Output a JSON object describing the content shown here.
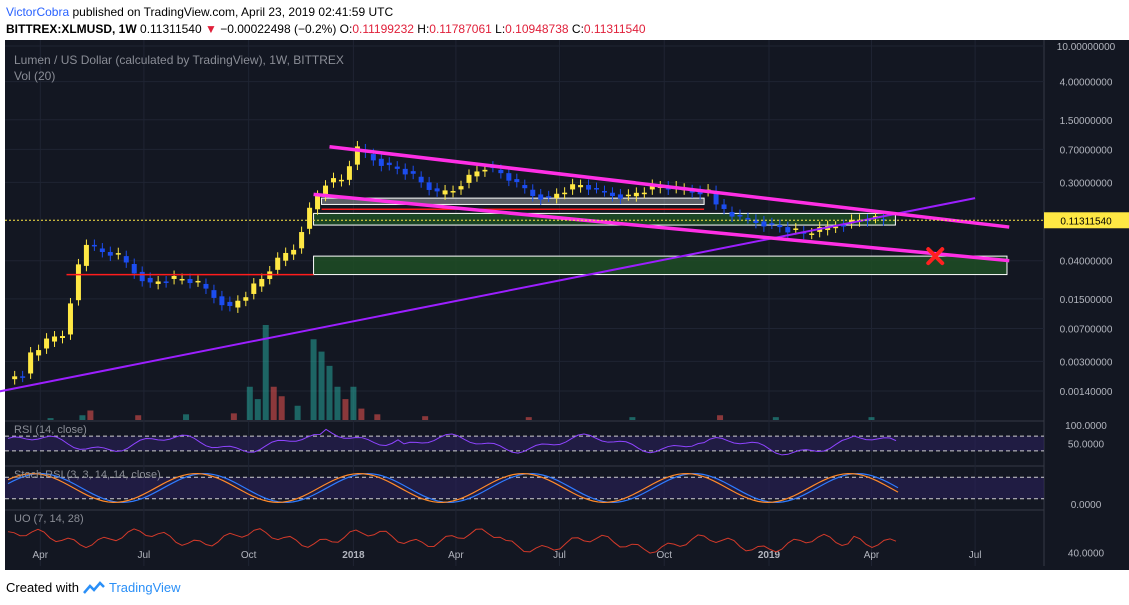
{
  "header": {
    "author": "VictorCobra",
    "published": "published on TradingView.com, April 23, 2019 02:41:59 UTC",
    "symbol": "BITTREX:XLMUSD, 1W",
    "last": "0.11311540",
    "change": "−0.00022498 (−0.2%)",
    "o_label": "O:",
    "o": "0.11199232",
    "h_label": "H:",
    "h": "0.11787061",
    "l_label": "L:",
    "l": "0.10948738",
    "c_label": "C:",
    "c": "0.11311540"
  },
  "chart_data": [
    {
      "type": "candlestick",
      "title": "Lumen / US Dollar (calculated by TradingView), 1W, BITTREX",
      "subtitle": "Vol (20)",
      "y_scale": "log",
      "ylim": [
        0.0007,
        10
      ],
      "y_ticks": [
        "10.00000000",
        "4.00000000",
        "1.50000000",
        "0.70000000",
        "0.30000000",
        "0.11311540",
        "0.04000000",
        "0.01500000",
        "0.00700000",
        "0.00300000",
        "0.00140000"
      ],
      "x_ticks": [
        "Apr",
        "Jul",
        "Oct",
        "2018",
        "Apr",
        "Jul",
        "Oct",
        "2019",
        "Apr",
        "Jul"
      ],
      "last_price": 0.1131154,
      "price_path": [
        [
          "2017-03-06",
          0.0019
        ],
        [
          "2017-03-20",
          0.0022
        ],
        [
          "2017-03-27",
          0.0035
        ],
        [
          "2017-04-10",
          0.005
        ],
        [
          "2017-04-24",
          0.006
        ],
        [
          "2017-05-08",
          0.035
        ],
        [
          "2017-05-15",
          0.06
        ],
        [
          "2017-05-29",
          0.05
        ],
        [
          "2017-06-12",
          0.045
        ],
        [
          "2017-06-26",
          0.03
        ],
        [
          "2017-07-10",
          0.022
        ],
        [
          "2017-07-24",
          0.025
        ],
        [
          "2017-08-07",
          0.025
        ],
        [
          "2017-08-21",
          0.022
        ],
        [
          "2017-09-04",
          0.016
        ],
        [
          "2017-09-18",
          0.012
        ],
        [
          "2017-10-02",
          0.017
        ],
        [
          "2017-10-16",
          0.025
        ],
        [
          "2017-10-30",
          0.04
        ],
        [
          "2017-11-13",
          0.055
        ],
        [
          "2017-11-27",
          0.15
        ],
        [
          "2017-12-11",
          0.3
        ],
        [
          "2017-12-25",
          0.32
        ],
        [
          "2018-01-08",
          0.7
        ],
        [
          "2018-01-22",
          0.55
        ],
        [
          "2018-02-05",
          0.45
        ],
        [
          "2018-02-19",
          0.4
        ],
        [
          "2018-03-05",
          0.3
        ],
        [
          "2018-03-19",
          0.22
        ],
        [
          "2018-04-02",
          0.25
        ],
        [
          "2018-04-16",
          0.35
        ],
        [
          "2018-04-30",
          0.45
        ],
        [
          "2018-05-14",
          0.38
        ],
        [
          "2018-05-28",
          0.28
        ],
        [
          "2018-06-11",
          0.22
        ],
        [
          "2018-06-25",
          0.2
        ],
        [
          "2018-07-09",
          0.25
        ],
        [
          "2018-07-23",
          0.28
        ],
        [
          "2018-08-06",
          0.24
        ],
        [
          "2018-08-20",
          0.22
        ],
        [
          "2018-09-03",
          0.21
        ],
        [
          "2018-09-17",
          0.25
        ],
        [
          "2018-10-01",
          0.27
        ],
        [
          "2018-10-15",
          0.25
        ],
        [
          "2018-10-29",
          0.24
        ],
        [
          "2018-11-12",
          0.24
        ],
        [
          "2018-11-19",
          0.17
        ],
        [
          "2018-11-26",
          0.14
        ],
        [
          "2018-12-10",
          0.12
        ],
        [
          "2018-12-24",
          0.11
        ],
        [
          "2019-01-07",
          0.1
        ],
        [
          "2019-01-21",
          0.09
        ],
        [
          "2019-02-04",
          0.08
        ],
        [
          "2019-02-18",
          0.088
        ],
        [
          "2019-03-04",
          0.1
        ],
        [
          "2019-03-18",
          0.11
        ],
        [
          "2019-04-01",
          0.12
        ],
        [
          "2019-04-15",
          0.113
        ]
      ],
      "volume_bars": [
        [
          "2017-04-10",
          0.02,
          "up"
        ],
        [
          "2017-05-08",
          0.05,
          "up"
        ],
        [
          "2017-05-15",
          0.1,
          "down"
        ],
        [
          "2017-06-26",
          0.05,
          "down"
        ],
        [
          "2017-08-07",
          0.06,
          "up"
        ],
        [
          "2017-09-18",
          0.07,
          "down"
        ],
        [
          "2017-10-02",
          0.35,
          "up"
        ],
        [
          "2017-10-09",
          0.22,
          "up"
        ],
        [
          "2017-10-16",
          1.0,
          "up"
        ],
        [
          "2017-10-23",
          0.35,
          "down"
        ],
        [
          "2017-10-30",
          0.25,
          "down"
        ],
        [
          "2017-11-13",
          0.15,
          "up"
        ],
        [
          "2017-11-27",
          0.85,
          "up"
        ],
        [
          "2017-12-04",
          0.72,
          "up"
        ],
        [
          "2017-12-11",
          0.57,
          "up"
        ],
        [
          "2017-12-18",
          0.35,
          "up"
        ],
        [
          "2017-12-25",
          0.22,
          "down"
        ],
        [
          "2018-01-01",
          0.35,
          "up"
        ],
        [
          "2018-01-08",
          0.12,
          "down"
        ],
        [
          "2018-01-22",
          0.06,
          "down"
        ],
        [
          "2018-03-05",
          0.04,
          "down"
        ],
        [
          "2018-06-04",
          0.03,
          "down"
        ],
        [
          "2018-09-03",
          0.03,
          "up"
        ],
        [
          "2018-11-19",
          0.05,
          "down"
        ],
        [
          "2019-01-07",
          0.03,
          "up"
        ],
        [
          "2019-04-01",
          0.03,
          "up"
        ]
      ],
      "annotations": {
        "channel_upper": [
          [
            "2017-12-11",
            0.75
          ],
          [
            "2019-07-31",
            0.095
          ]
        ],
        "channel_lower": [
          [
            "2017-11-27",
            0.22
          ],
          [
            "2019-07-31",
            0.04
          ]
        ],
        "rising_trendline": [
          [
            "2017-02-13",
            0.0013
          ],
          [
            "2019-07-01",
            0.2
          ]
        ],
        "support_line_2017": [
          [
            "2017-04-24",
            0.028
          ],
          [
            "2017-11-27",
            0.028
          ]
        ],
        "support_line_2018": [
          [
            "2017-11-27",
            0.15
          ],
          [
            "2019-07-31",
            0.028
          ]
        ],
        "red_resistance": [
          [
            "2017-12-04",
            0.15
          ],
          [
            "2018-11-05",
            0.15
          ]
        ],
        "boxes": [
          {
            "from": [
              "2017-12-04",
              0.2
            ],
            "to": [
              "2018-11-05",
              0.17
            ],
            "fill": "#e8e8e8"
          },
          {
            "from": [
              "2017-11-27",
              0.135
            ],
            "to": [
              "2019-04-22",
              0.1
            ],
            "fill": "#1e4d24"
          },
          {
            "from": [
              "2017-11-27",
              0.045
            ],
            "to": [
              "2019-07-29",
              0.028
            ],
            "fill": "#1e4d24"
          }
        ],
        "target_marker": [
          "2019-05-27",
          0.045
        ]
      },
      "colors": {
        "background": "#131722",
        "up": "#ffe844",
        "down": "#1c4df0",
        "channel": "#ff2fe5",
        "trend": "#9c1fff",
        "red": "#ff1c1c",
        "box_border": "#ffffff",
        "target_marker": "#ff2020",
        "price_label": "#ffe844"
      }
    },
    {
      "type": "line",
      "title": "RSI (14, close)",
      "y_ticks": [
        "100.0000",
        "50.0000"
      ],
      "bands": [
        70,
        30
      ],
      "last_value": 50,
      "colors": {
        "line": "#8e44ff",
        "band_fill": "#2a1f5a"
      }
    },
    {
      "type": "line",
      "title": "Stoch RSI (3, 3, 14, 14, close)",
      "y_ticks": [
        "0.0000"
      ],
      "series": [
        {
          "color": "#2f7bff"
        },
        {
          "color": "#ff8a2a"
        }
      ],
      "colors": {
        "band_fill": "#2a1f5a"
      }
    },
    {
      "type": "line",
      "title": "UO (7, 14, 28)",
      "y_ticks": [
        "40.0000"
      ],
      "colors": {
        "line": "#d33a2a"
      }
    }
  ],
  "footer": {
    "created_with": "Created with",
    "brand": "TradingView"
  }
}
